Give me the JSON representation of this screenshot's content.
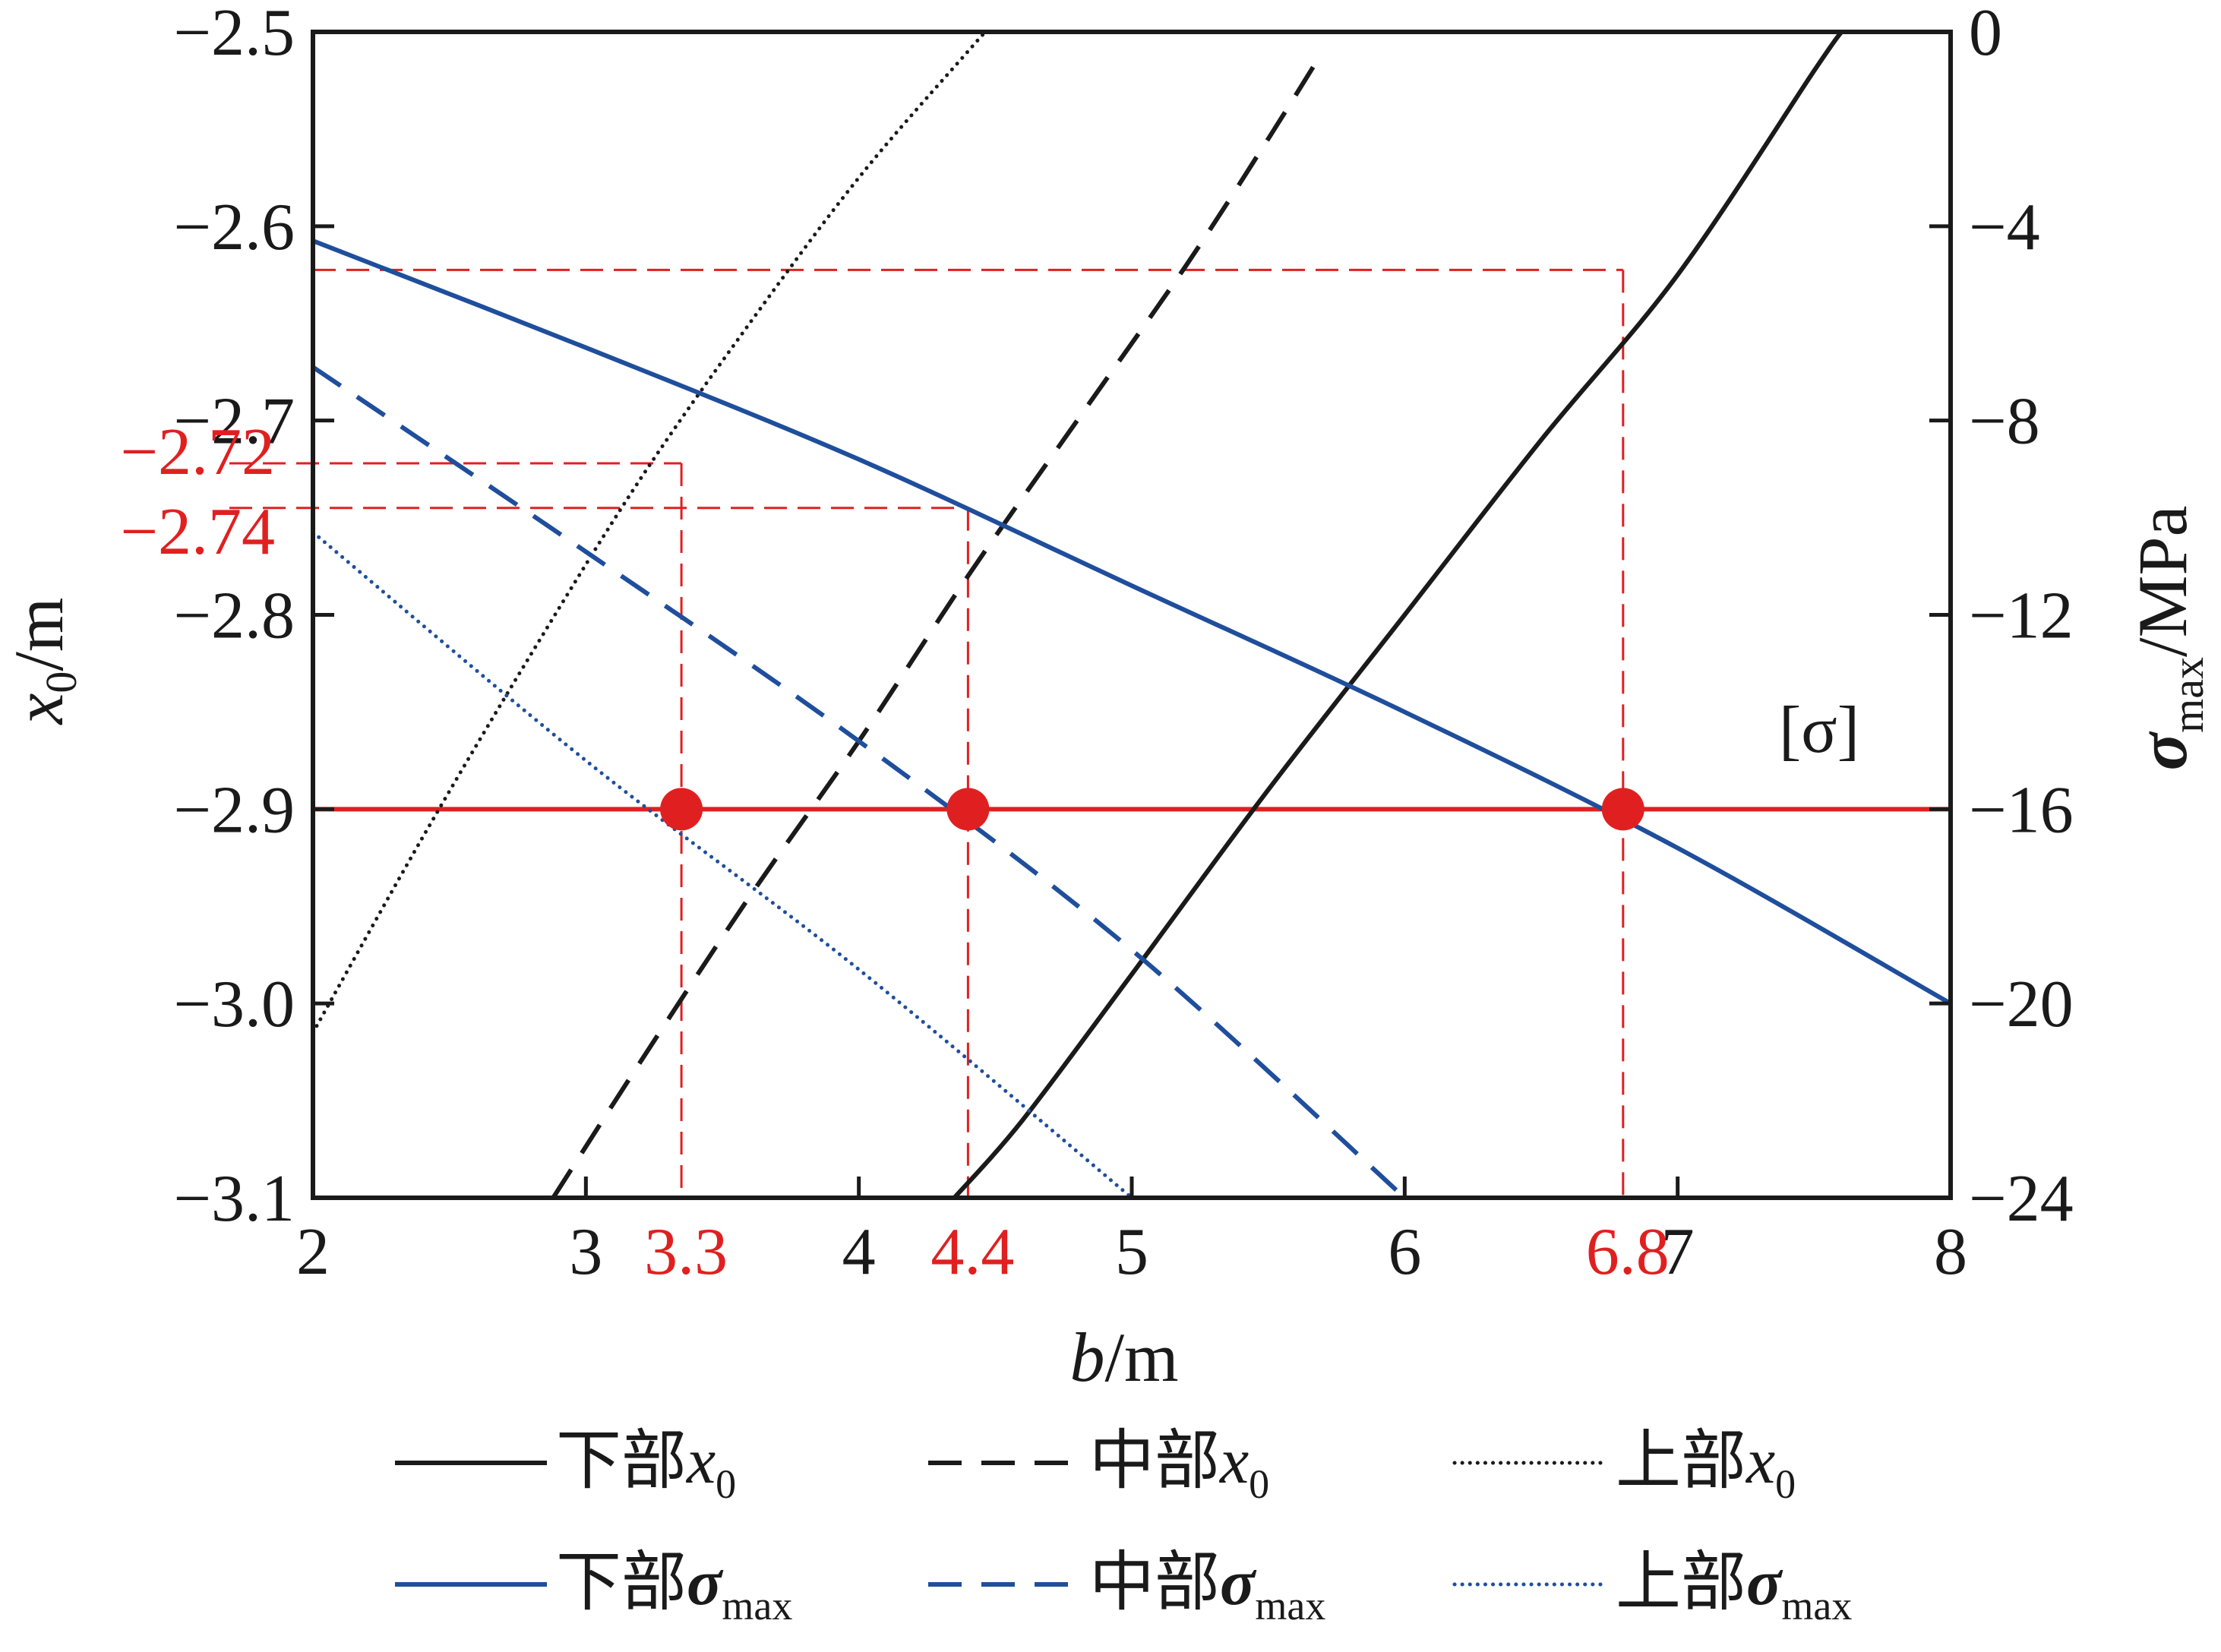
{
  "chart_data": {
    "type": "line",
    "title": "",
    "x_axis": {
      "label_italic": "b",
      "label_unit": "/m",
      "range": [
        2,
        8
      ],
      "ticks": [
        "2",
        "3",
        "4",
        "5",
        "6",
        "7",
        "8"
      ],
      "highlight_ticks": [
        {
          "value": 3.35,
          "label": "3.3"
        },
        {
          "value": 4.4,
          "label": "4.4"
        },
        {
          "value": 6.8,
          "label": "6.8"
        }
      ]
    },
    "y_left": {
      "label_italic": "x",
      "label_sub": "0",
      "label_unit": "/m",
      "range": [
        -3.1,
        -2.5
      ],
      "ticks": [
        "−2.5",
        "−2.6",
        "−2.7",
        "−2.8",
        "−2.9",
        "−3.0",
        "−3.1"
      ],
      "tick_values": [
        -2.5,
        -2.6,
        -2.7,
        -2.8,
        -2.9,
        -3.0,
        -3.1
      ],
      "highlight_ticks": [
        {
          "value": -2.722,
          "label": "−2.72"
        },
        {
          "value": -2.745,
          "label": "−2.74"
        }
      ]
    },
    "y_right": {
      "label_italic": "σ",
      "label_sub": "max",
      "label_unit": "/MPa",
      "range": [
        -24,
        0
      ],
      "ticks": [
        "0",
        "−4",
        "−8",
        "−12",
        "−16",
        "−20",
        "−24"
      ],
      "tick_values": [
        0,
        -4,
        -8,
        -12,
        -16,
        -20,
        -24
      ]
    },
    "allowable_stress": {
      "label": "[σ]",
      "value": -16
    },
    "intersections": [
      {
        "x": 3.35,
        "stress": -16
      },
      {
        "x": 4.4,
        "stress": -16
      },
      {
        "x": 6.8,
        "stress": -16
      }
    ],
    "series": [
      {
        "name": "下部x0",
        "legend_main": "下部",
        "legend_sym": "x",
        "legend_sub": "0",
        "axis": "left",
        "color": "#1a1a1a",
        "style": "solid",
        "x": [
          4.35,
          4.6,
          5.0,
          5.5,
          6.0,
          6.5,
          7.0,
          7.5,
          7.6
        ],
        "y": [
          -3.1,
          -3.06,
          -2.985,
          -2.89,
          -2.8,
          -2.71,
          -2.625,
          -2.52,
          -2.5
        ]
      },
      {
        "name": "中部x0",
        "legend_main": "中部",
        "legend_sym": "x",
        "legend_sub": "0",
        "axis": "left",
        "color": "#1a1a1a",
        "style": "dashed",
        "x": [
          2.88,
          3.2,
          3.6,
          4.0,
          4.4,
          4.8,
          5.2,
          5.5,
          5.7
        ],
        "y": [
          -3.1,
          -3.03,
          -2.945,
          -2.865,
          -2.78,
          -2.7,
          -2.62,
          -2.555,
          -2.51
        ]
      },
      {
        "name": "上部x0",
        "legend_main": "上部",
        "legend_sym": "x",
        "legend_sub": "0",
        "axis": "left",
        "color": "#1a1a1a",
        "style": "dotted",
        "x": [
          2.0,
          2.4,
          2.8,
          3.2,
          3.6,
          4.0,
          4.4,
          4.53
        ],
        "y": [
          -3.015,
          -2.915,
          -2.82,
          -2.73,
          -2.65,
          -2.575,
          -2.51,
          -2.49
        ]
      },
      {
        "name": "下部σmax",
        "legend_main": "下部",
        "legend_sym": "σ",
        "legend_sub": "max",
        "axis": "right",
        "color": "#1f4e9c",
        "style": "solid",
        "x": [
          2.0,
          3.0,
          4.0,
          5.0,
          6.0,
          7.0,
          8.0
        ],
        "y": [
          -4.3,
          -6.5,
          -8.8,
          -11.4,
          -14.0,
          -16.8,
          -20.0
        ]
      },
      {
        "name": "中部σmax",
        "legend_main": "中部",
        "legend_sym": "σ",
        "legend_sub": "max",
        "axis": "right",
        "color": "#1f4e9c",
        "style": "dashed",
        "x": [
          2.0,
          3.0,
          4.0,
          5.0,
          6.0
        ],
        "y": [
          -6.9,
          -10.7,
          -14.6,
          -18.9,
          -24.0
        ]
      },
      {
        "name": "上部σmax",
        "legend_main": "上部",
        "legend_sym": "σ",
        "legend_sub": "max",
        "axis": "right",
        "color": "#1f4e9c",
        "style": "dotted",
        "x": [
          2.0,
          3.0,
          4.0,
          5.0
        ],
        "y": [
          -10.3,
          -15.0,
          -19.3,
          -24.0
        ]
      }
    ]
  }
}
